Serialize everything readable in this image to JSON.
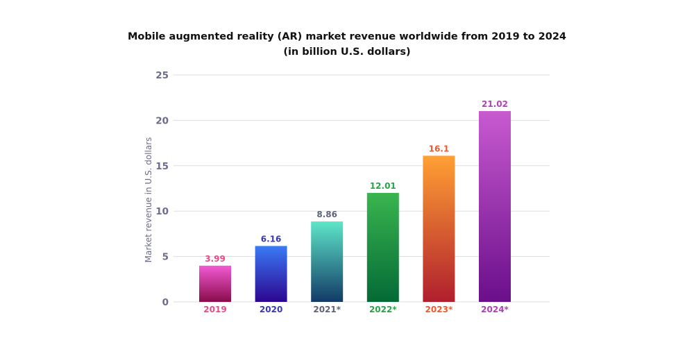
{
  "chart_data": {
    "type": "bar",
    "title_lines": [
      "Mobile augmented reality (AR) market revenue worldwide from 2019 to 2024",
      "(in billion U.S. dollars)"
    ],
    "xlabel": "",
    "ylabel": "Market revenue in U.S. dollars",
    "ylim": [
      0,
      25
    ],
    "yticks": [
      "0",
      "5",
      "10",
      "15",
      "20",
      "25"
    ],
    "grid": true,
    "categories": [
      "2019",
      "2020",
      "2021*",
      "2022*",
      "2023*",
      "2024*"
    ],
    "values": [
      3.99,
      6.16,
      8.86,
      12.01,
      16.1,
      21.02
    ],
    "value_labels": [
      "3.99",
      "6.16",
      "8.86",
      "12.01",
      "16.1",
      "21.02"
    ],
    "colors": {
      "label": [
        "#e84b8a",
        "#3a36b8",
        "#5e6478",
        "#2aa24a",
        "#f05a2a",
        "#b040b8"
      ],
      "gradient_top": [
        "#f25ad4",
        "#3a7af5",
        "#5ee6c9",
        "#3ab54f",
        "#ffa033",
        "#c85ad0"
      ],
      "gradient_bottom": [
        "#8a0c4a",
        "#2c0690",
        "#123a66",
        "#046a35",
        "#b01f2e",
        "#6a0f8a"
      ],
      "grid": "#dddddd",
      "axis_text": "#6b6b8c",
      "title": "#111111"
    }
  }
}
